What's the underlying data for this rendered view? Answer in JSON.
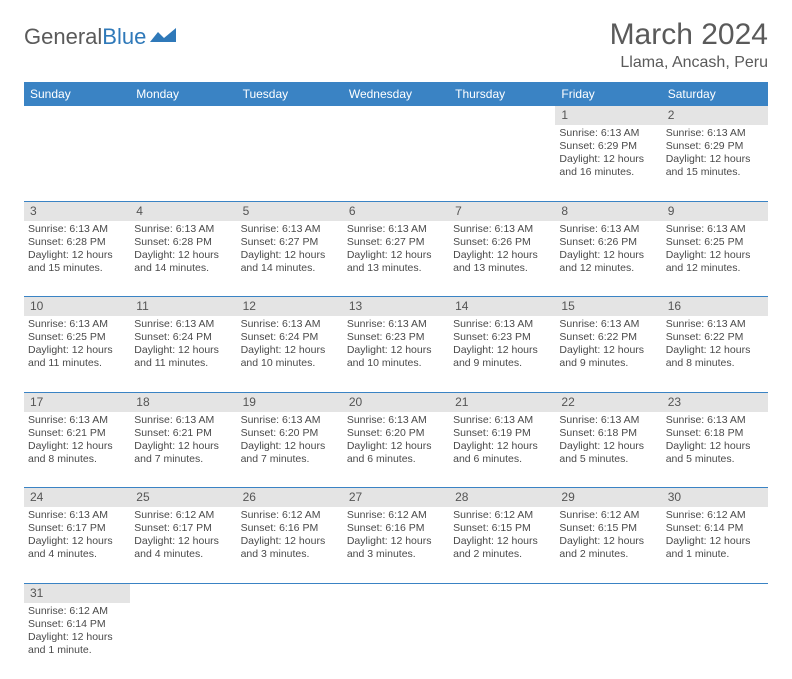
{
  "brand": {
    "part1": "General",
    "part2": "Blue"
  },
  "title": "March 2024",
  "location": "Llama, Ancash, Peru",
  "colors": {
    "header_bg": "#3a83c4",
    "header_text": "#ffffff",
    "daynum_bg": "#e4e4e4",
    "row_divider": "#3a83c4",
    "body_text": "#4a4a4a",
    "title_text": "#5a5a5a",
    "logo_blue": "#2f79b9"
  },
  "dayHeaders": [
    "Sunday",
    "Monday",
    "Tuesday",
    "Wednesday",
    "Thursday",
    "Friday",
    "Saturday"
  ],
  "weeks": [
    {
      "nums": [
        "",
        "",
        "",
        "",
        "",
        "1",
        "2"
      ],
      "cells": [
        null,
        null,
        null,
        null,
        null,
        {
          "sunrise": "Sunrise: 6:13 AM",
          "sunset": "Sunset: 6:29 PM",
          "day1": "Daylight: 12 hours",
          "day2": "and 16 minutes."
        },
        {
          "sunrise": "Sunrise: 6:13 AM",
          "sunset": "Sunset: 6:29 PM",
          "day1": "Daylight: 12 hours",
          "day2": "and 15 minutes."
        }
      ]
    },
    {
      "nums": [
        "3",
        "4",
        "5",
        "6",
        "7",
        "8",
        "9"
      ],
      "cells": [
        {
          "sunrise": "Sunrise: 6:13 AM",
          "sunset": "Sunset: 6:28 PM",
          "day1": "Daylight: 12 hours",
          "day2": "and 15 minutes."
        },
        {
          "sunrise": "Sunrise: 6:13 AM",
          "sunset": "Sunset: 6:28 PM",
          "day1": "Daylight: 12 hours",
          "day2": "and 14 minutes."
        },
        {
          "sunrise": "Sunrise: 6:13 AM",
          "sunset": "Sunset: 6:27 PM",
          "day1": "Daylight: 12 hours",
          "day2": "and 14 minutes."
        },
        {
          "sunrise": "Sunrise: 6:13 AM",
          "sunset": "Sunset: 6:27 PM",
          "day1": "Daylight: 12 hours",
          "day2": "and 13 minutes."
        },
        {
          "sunrise": "Sunrise: 6:13 AM",
          "sunset": "Sunset: 6:26 PM",
          "day1": "Daylight: 12 hours",
          "day2": "and 13 minutes."
        },
        {
          "sunrise": "Sunrise: 6:13 AM",
          "sunset": "Sunset: 6:26 PM",
          "day1": "Daylight: 12 hours",
          "day2": "and 12 minutes."
        },
        {
          "sunrise": "Sunrise: 6:13 AM",
          "sunset": "Sunset: 6:25 PM",
          "day1": "Daylight: 12 hours",
          "day2": "and 12 minutes."
        }
      ]
    },
    {
      "nums": [
        "10",
        "11",
        "12",
        "13",
        "14",
        "15",
        "16"
      ],
      "cells": [
        {
          "sunrise": "Sunrise: 6:13 AM",
          "sunset": "Sunset: 6:25 PM",
          "day1": "Daylight: 12 hours",
          "day2": "and 11 minutes."
        },
        {
          "sunrise": "Sunrise: 6:13 AM",
          "sunset": "Sunset: 6:24 PM",
          "day1": "Daylight: 12 hours",
          "day2": "and 11 minutes."
        },
        {
          "sunrise": "Sunrise: 6:13 AM",
          "sunset": "Sunset: 6:24 PM",
          "day1": "Daylight: 12 hours",
          "day2": "and 10 minutes."
        },
        {
          "sunrise": "Sunrise: 6:13 AM",
          "sunset": "Sunset: 6:23 PM",
          "day1": "Daylight: 12 hours",
          "day2": "and 10 minutes."
        },
        {
          "sunrise": "Sunrise: 6:13 AM",
          "sunset": "Sunset: 6:23 PM",
          "day1": "Daylight: 12 hours",
          "day2": "and 9 minutes."
        },
        {
          "sunrise": "Sunrise: 6:13 AM",
          "sunset": "Sunset: 6:22 PM",
          "day1": "Daylight: 12 hours",
          "day2": "and 9 minutes."
        },
        {
          "sunrise": "Sunrise: 6:13 AM",
          "sunset": "Sunset: 6:22 PM",
          "day1": "Daylight: 12 hours",
          "day2": "and 8 minutes."
        }
      ]
    },
    {
      "nums": [
        "17",
        "18",
        "19",
        "20",
        "21",
        "22",
        "23"
      ],
      "cells": [
        {
          "sunrise": "Sunrise: 6:13 AM",
          "sunset": "Sunset: 6:21 PM",
          "day1": "Daylight: 12 hours",
          "day2": "and 8 minutes."
        },
        {
          "sunrise": "Sunrise: 6:13 AM",
          "sunset": "Sunset: 6:21 PM",
          "day1": "Daylight: 12 hours",
          "day2": "and 7 minutes."
        },
        {
          "sunrise": "Sunrise: 6:13 AM",
          "sunset": "Sunset: 6:20 PM",
          "day1": "Daylight: 12 hours",
          "day2": "and 7 minutes."
        },
        {
          "sunrise": "Sunrise: 6:13 AM",
          "sunset": "Sunset: 6:20 PM",
          "day1": "Daylight: 12 hours",
          "day2": "and 6 minutes."
        },
        {
          "sunrise": "Sunrise: 6:13 AM",
          "sunset": "Sunset: 6:19 PM",
          "day1": "Daylight: 12 hours",
          "day2": "and 6 minutes."
        },
        {
          "sunrise": "Sunrise: 6:13 AM",
          "sunset": "Sunset: 6:18 PM",
          "day1": "Daylight: 12 hours",
          "day2": "and 5 minutes."
        },
        {
          "sunrise": "Sunrise: 6:13 AM",
          "sunset": "Sunset: 6:18 PM",
          "day1": "Daylight: 12 hours",
          "day2": "and 5 minutes."
        }
      ]
    },
    {
      "nums": [
        "24",
        "25",
        "26",
        "27",
        "28",
        "29",
        "30"
      ],
      "cells": [
        {
          "sunrise": "Sunrise: 6:13 AM",
          "sunset": "Sunset: 6:17 PM",
          "day1": "Daylight: 12 hours",
          "day2": "and 4 minutes."
        },
        {
          "sunrise": "Sunrise: 6:12 AM",
          "sunset": "Sunset: 6:17 PM",
          "day1": "Daylight: 12 hours",
          "day2": "and 4 minutes."
        },
        {
          "sunrise": "Sunrise: 6:12 AM",
          "sunset": "Sunset: 6:16 PM",
          "day1": "Daylight: 12 hours",
          "day2": "and 3 minutes."
        },
        {
          "sunrise": "Sunrise: 6:12 AM",
          "sunset": "Sunset: 6:16 PM",
          "day1": "Daylight: 12 hours",
          "day2": "and 3 minutes."
        },
        {
          "sunrise": "Sunrise: 6:12 AM",
          "sunset": "Sunset: 6:15 PM",
          "day1": "Daylight: 12 hours",
          "day2": "and 2 minutes."
        },
        {
          "sunrise": "Sunrise: 6:12 AM",
          "sunset": "Sunset: 6:15 PM",
          "day1": "Daylight: 12 hours",
          "day2": "and 2 minutes."
        },
        {
          "sunrise": "Sunrise: 6:12 AM",
          "sunset": "Sunset: 6:14 PM",
          "day1": "Daylight: 12 hours",
          "day2": "and 1 minute."
        }
      ]
    },
    {
      "nums": [
        "31",
        "",
        "",
        "",
        "",
        "",
        ""
      ],
      "cells": [
        {
          "sunrise": "Sunrise: 6:12 AM",
          "sunset": "Sunset: 6:14 PM",
          "day1": "Daylight: 12 hours",
          "day2": "and 1 minute."
        },
        null,
        null,
        null,
        null,
        null,
        null
      ]
    }
  ]
}
